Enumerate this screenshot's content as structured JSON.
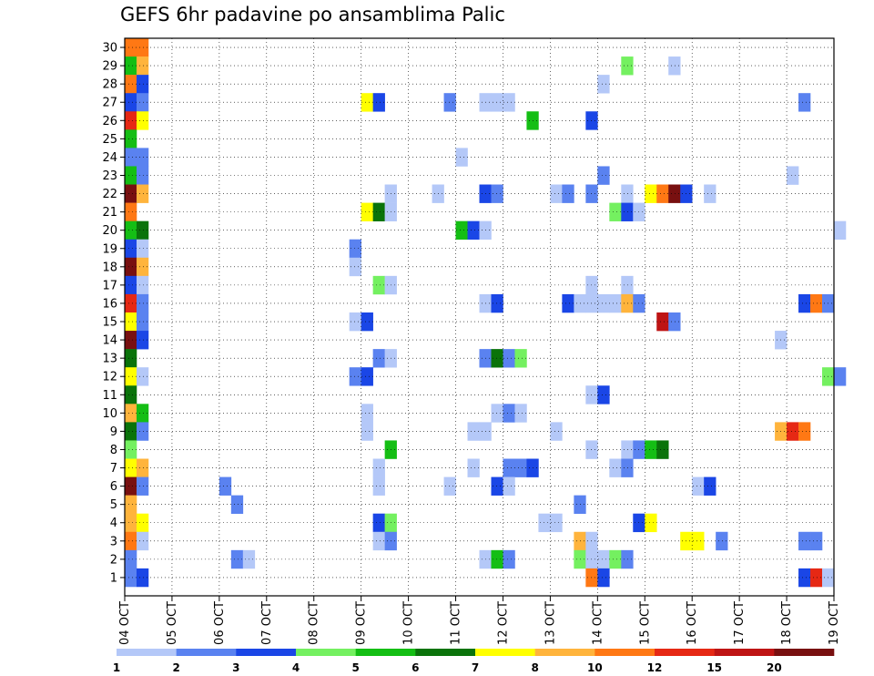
{
  "chart_data": {
    "type": "heatmap",
    "title": "GEFS 6hr padavine po ansamblima Palic",
    "xlabel": "",
    "ylabel": "",
    "x_ticks": [
      "04 OCT",
      "05 OCT",
      "06 OCT",
      "07 OCT",
      "08 OCT",
      "09 OCT",
      "10 OCT",
      "11 OCT",
      "12 OCT",
      "13 OCT",
      "14 OCT",
      "15 OCT",
      "16 OCT",
      "17 OCT",
      "18 OCT",
      "19 OCT"
    ],
    "xlim": [
      "04 OCT 00z",
      "19 OCT 00z"
    ],
    "time_step_hours": 6,
    "y_ticks": [
      "1",
      "2",
      "3",
      "4",
      "5",
      "6",
      "7",
      "8",
      "9",
      "10",
      "11",
      "12",
      "13",
      "14",
      "15",
      "16",
      "17",
      "18",
      "19",
      "20",
      "21",
      "22",
      "23",
      "24",
      "25",
      "26",
      "27",
      "28",
      "29",
      "30"
    ],
    "ylim": [
      0,
      30
    ],
    "grid": true,
    "colorbar": {
      "placement": "bottom",
      "labels": [
        "1",
        "2",
        "3",
        "4",
        "5",
        "6",
        "7",
        "8",
        "10",
        "12",
        "15",
        "20"
      ],
      "colors": [
        "#b4c8f8",
        "#5a82f0",
        "#1a46e6",
        "#74f060",
        "#14be14",
        "#0a730a",
        "#ffff00",
        "#ffb43c",
        "#ff7814",
        "#e62814",
        "#be1414",
        "#781010"
      ]
    },
    "cells": [
      {
        "member": 30,
        "t": 0,
        "v": "10-12"
      },
      {
        "member": 30,
        "t": 1,
        "v": "10-12"
      },
      {
        "member": 29,
        "t": 0,
        "v": "5-6"
      },
      {
        "member": 29,
        "t": 1,
        "v": "8-10"
      },
      {
        "member": 29,
        "t": 42,
        "v": "4-5"
      },
      {
        "member": 29,
        "t": 46,
        "v": "1-2"
      },
      {
        "member": 28,
        "t": 0,
        "v": "10-12"
      },
      {
        "member": 28,
        "t": 1,
        "v": "3-4"
      },
      {
        "member": 28,
        "t": 40,
        "v": "1-2"
      },
      {
        "member": 27,
        "t": 0,
        "v": "3-4"
      },
      {
        "member": 27,
        "t": 1,
        "v": "2-3"
      },
      {
        "member": 27,
        "t": 20,
        "v": "7-8"
      },
      {
        "member": 27,
        "t": 21,
        "v": "3-4"
      },
      {
        "member": 27,
        "t": 27,
        "v": "2-3"
      },
      {
        "member": 27,
        "t": 30,
        "v": "1-2"
      },
      {
        "member": 27,
        "t": 31,
        "v": "1-2"
      },
      {
        "member": 27,
        "t": 32,
        "v": "1-2"
      },
      {
        "member": 27,
        "t": 57,
        "v": "2-3"
      },
      {
        "member": 26,
        "t": 0,
        "v": "12-15"
      },
      {
        "member": 26,
        "t": 1,
        "v": "7-8"
      },
      {
        "member": 26,
        "t": 34,
        "v": "5-6"
      },
      {
        "member": 26,
        "t": 39,
        "v": "3-4"
      },
      {
        "member": 25,
        "t": 0,
        "v": "5-6"
      },
      {
        "member": 24,
        "t": 0,
        "v": "2-3"
      },
      {
        "member": 24,
        "t": 1,
        "v": "2-3"
      },
      {
        "member": 24,
        "t": 28,
        "v": "1-2"
      },
      {
        "member": 23,
        "t": 0,
        "v": "5-6"
      },
      {
        "member": 23,
        "t": 1,
        "v": "2-3"
      },
      {
        "member": 23,
        "t": 40,
        "v": "2-3"
      },
      {
        "member": 23,
        "t": 56,
        "v": "1-2"
      },
      {
        "member": 22,
        "t": 0,
        "v": "20+"
      },
      {
        "member": 22,
        "t": 1,
        "v": "8-10"
      },
      {
        "member": 22,
        "t": 22,
        "v": "1-2"
      },
      {
        "member": 22,
        "t": 26,
        "v": "1-2"
      },
      {
        "member": 22,
        "t": 30,
        "v": "3-4"
      },
      {
        "member": 22,
        "t": 31,
        "v": "2-3"
      },
      {
        "member": 22,
        "t": 36,
        "v": "1-2"
      },
      {
        "member": 22,
        "t": 37,
        "v": "2-3"
      },
      {
        "member": 22,
        "t": 39,
        "v": "2-3"
      },
      {
        "member": 22,
        "t": 42,
        "v": "1-2"
      },
      {
        "member": 22,
        "t": 44,
        "v": "7-8"
      },
      {
        "member": 22,
        "t": 45,
        "v": "10-12"
      },
      {
        "member": 22,
        "t": 46,
        "v": "20+"
      },
      {
        "member": 22,
        "t": 47,
        "v": "3-4"
      },
      {
        "member": 22,
        "t": 49,
        "v": "1-2"
      },
      {
        "member": 21,
        "t": 0,
        "v": "10-12"
      },
      {
        "member": 21,
        "t": 20,
        "v": "7-8"
      },
      {
        "member": 21,
        "t": 21,
        "v": "6-7"
      },
      {
        "member": 21,
        "t": 22,
        "v": "1-2"
      },
      {
        "member": 21,
        "t": 41,
        "v": "4-5"
      },
      {
        "member": 21,
        "t": 42,
        "v": "3-4"
      },
      {
        "member": 21,
        "t": 43,
        "v": "1-2"
      },
      {
        "member": 20,
        "t": 0,
        "v": "5-6"
      },
      {
        "member": 20,
        "t": 1,
        "v": "6-7"
      },
      {
        "member": 20,
        "t": 28,
        "v": "5-6"
      },
      {
        "member": 20,
        "t": 29,
        "v": "3-4"
      },
      {
        "member": 20,
        "t": 30,
        "v": "1-2"
      },
      {
        "member": 20,
        "t": 60,
        "v": "1-2"
      },
      {
        "member": 19,
        "t": 0,
        "v": "3-4"
      },
      {
        "member": 19,
        "t": 1,
        "v": "1-2"
      },
      {
        "member": 19,
        "t": 19,
        "v": "2-3"
      },
      {
        "member": 18,
        "t": 0,
        "v": "20+"
      },
      {
        "member": 18,
        "t": 1,
        "v": "8-10"
      },
      {
        "member": 18,
        "t": 19,
        "v": "1-2"
      },
      {
        "member": 17,
        "t": 0,
        "v": "3-4"
      },
      {
        "member": 17,
        "t": 1,
        "v": "1-2"
      },
      {
        "member": 17,
        "t": 21,
        "v": "4-5"
      },
      {
        "member": 17,
        "t": 22,
        "v": "1-2"
      },
      {
        "member": 17,
        "t": 39,
        "v": "1-2"
      },
      {
        "member": 17,
        "t": 42,
        "v": "1-2"
      },
      {
        "member": 16,
        "t": 0,
        "v": "12-15"
      },
      {
        "member": 16,
        "t": 1,
        "v": "2-3"
      },
      {
        "member": 16,
        "t": 30,
        "v": "1-2"
      },
      {
        "member": 16,
        "t": 31,
        "v": "3-4"
      },
      {
        "member": 16,
        "t": 37,
        "v": "3-4"
      },
      {
        "member": 16,
        "t": 38,
        "v": "1-2"
      },
      {
        "member": 16,
        "t": 39,
        "v": "1-2"
      },
      {
        "member": 16,
        "t": 40,
        "v": "1-2"
      },
      {
        "member": 16,
        "t": 41,
        "v": "1-2"
      },
      {
        "member": 16,
        "t": 42,
        "v": "8-10"
      },
      {
        "member": 16,
        "t": 43,
        "v": "2-3"
      },
      {
        "member": 16,
        "t": 57,
        "v": "3-4"
      },
      {
        "member": 16,
        "t": 58,
        "v": "10-12"
      },
      {
        "member": 16,
        "t": 59,
        "v": "2-3"
      },
      {
        "member": 15,
        "t": 0,
        "v": "7-8"
      },
      {
        "member": 15,
        "t": 1,
        "v": "2-3"
      },
      {
        "member": 15,
        "t": 19,
        "v": "1-2"
      },
      {
        "member": 15,
        "t": 20,
        "v": "3-4"
      },
      {
        "member": 15,
        "t": 45,
        "v": "15-20"
      },
      {
        "member": 15,
        "t": 46,
        "v": "2-3"
      },
      {
        "member": 14,
        "t": 0,
        "v": "20+"
      },
      {
        "member": 14,
        "t": 1,
        "v": "3-4"
      },
      {
        "member": 14,
        "t": 55,
        "v": "1-2"
      },
      {
        "member": 13,
        "t": 0,
        "v": "6-7"
      },
      {
        "member": 13,
        "t": 21,
        "v": "2-3"
      },
      {
        "member": 13,
        "t": 22,
        "v": "1-2"
      },
      {
        "member": 13,
        "t": 30,
        "v": "2-3"
      },
      {
        "member": 13,
        "t": 31,
        "v": "6-7"
      },
      {
        "member": 13,
        "t": 32,
        "v": "2-3"
      },
      {
        "member": 13,
        "t": 33,
        "v": "4-5"
      },
      {
        "member": 12,
        "t": 0,
        "v": "7-8"
      },
      {
        "member": 12,
        "t": 1,
        "v": "1-2"
      },
      {
        "member": 12,
        "t": 19,
        "v": "2-3"
      },
      {
        "member": 12,
        "t": 20,
        "v": "3-4"
      },
      {
        "member": 12,
        "t": 59,
        "v": "4-5"
      },
      {
        "member": 12,
        "t": 60,
        "v": "2-3"
      },
      {
        "member": 11,
        "t": 0,
        "v": "6-7"
      },
      {
        "member": 11,
        "t": 39,
        "v": "1-2"
      },
      {
        "member": 11,
        "t": 40,
        "v": "3-4"
      },
      {
        "member": 10,
        "t": 0,
        "v": "8-10"
      },
      {
        "member": 10,
        "t": 1,
        "v": "5-6"
      },
      {
        "member": 10,
        "t": 20,
        "v": "1-2"
      },
      {
        "member": 10,
        "t": 31,
        "v": "1-2"
      },
      {
        "member": 10,
        "t": 32,
        "v": "2-3"
      },
      {
        "member": 10,
        "t": 33,
        "v": "1-2"
      },
      {
        "member": 9,
        "t": 0,
        "v": "6-7"
      },
      {
        "member": 9,
        "t": 1,
        "v": "2-3"
      },
      {
        "member": 9,
        "t": 20,
        "v": "1-2"
      },
      {
        "member": 9,
        "t": 29,
        "v": "1-2"
      },
      {
        "member": 9,
        "t": 30,
        "v": "1-2"
      },
      {
        "member": 9,
        "t": 36,
        "v": "1-2"
      },
      {
        "member": 9,
        "t": 55,
        "v": "8-10"
      },
      {
        "member": 9,
        "t": 56,
        "v": "12-15"
      },
      {
        "member": 9,
        "t": 57,
        "v": "10-12"
      },
      {
        "member": 8,
        "t": 0,
        "v": "4-5"
      },
      {
        "member": 8,
        "t": 22,
        "v": "5-6"
      },
      {
        "member": 8,
        "t": 39,
        "v": "1-2"
      },
      {
        "member": 8,
        "t": 42,
        "v": "1-2"
      },
      {
        "member": 8,
        "t": 43,
        "v": "2-3"
      },
      {
        "member": 8,
        "t": 44,
        "v": "5-6"
      },
      {
        "member": 8,
        "t": 45,
        "v": "6-7"
      },
      {
        "member": 7,
        "t": 0,
        "v": "7-8"
      },
      {
        "member": 7,
        "t": 1,
        "v": "8-10"
      },
      {
        "member": 7,
        "t": 21,
        "v": "1-2"
      },
      {
        "member": 7,
        "t": 29,
        "v": "1-2"
      },
      {
        "member": 7,
        "t": 32,
        "v": "2-3"
      },
      {
        "member": 7,
        "t": 33,
        "v": "2-3"
      },
      {
        "member": 7,
        "t": 34,
        "v": "3-4"
      },
      {
        "member": 7,
        "t": 41,
        "v": "1-2"
      },
      {
        "member": 7,
        "t": 42,
        "v": "2-3"
      },
      {
        "member": 6,
        "t": 0,
        "v": "20+"
      },
      {
        "member": 6,
        "t": 1,
        "v": "2-3"
      },
      {
        "member": 6,
        "t": 8,
        "v": "2-3"
      },
      {
        "member": 6,
        "t": 21,
        "v": "1-2"
      },
      {
        "member": 6,
        "t": 27,
        "v": "1-2"
      },
      {
        "member": 6,
        "t": 31,
        "v": "3-4"
      },
      {
        "member": 6,
        "t": 32,
        "v": "1-2"
      },
      {
        "member": 6,
        "t": 48,
        "v": "1-2"
      },
      {
        "member": 6,
        "t": 49,
        "v": "3-4"
      },
      {
        "member": 5,
        "t": 0,
        "v": "8-10"
      },
      {
        "member": 5,
        "t": 9,
        "v": "2-3"
      },
      {
        "member": 5,
        "t": 38,
        "v": "2-3"
      },
      {
        "member": 4,
        "t": 0,
        "v": "8-10"
      },
      {
        "member": 4,
        "t": 1,
        "v": "7-8"
      },
      {
        "member": 4,
        "t": 21,
        "v": "3-4"
      },
      {
        "member": 4,
        "t": 22,
        "v": "4-5"
      },
      {
        "member": 4,
        "t": 35,
        "v": "1-2"
      },
      {
        "member": 4,
        "t": 36,
        "v": "1-2"
      },
      {
        "member": 4,
        "t": 43,
        "v": "3-4"
      },
      {
        "member": 4,
        "t": 44,
        "v": "7-8"
      },
      {
        "member": 3,
        "t": 0,
        "v": "10-12"
      },
      {
        "member": 3,
        "t": 1,
        "v": "1-2"
      },
      {
        "member": 3,
        "t": 21,
        "v": "1-2"
      },
      {
        "member": 3,
        "t": 22,
        "v": "2-3"
      },
      {
        "member": 3,
        "t": 38,
        "v": "8-10"
      },
      {
        "member": 3,
        "t": 39,
        "v": "1-2"
      },
      {
        "member": 3,
        "t": 47,
        "v": "7-8"
      },
      {
        "member": 3,
        "t": 48,
        "v": "7-8"
      },
      {
        "member": 3,
        "t": 50,
        "v": "2-3"
      },
      {
        "member": 3,
        "t": 57,
        "v": "2-3"
      },
      {
        "member": 3,
        "t": 58,
        "v": "2-3"
      },
      {
        "member": 2,
        "t": 0,
        "v": "2-3"
      },
      {
        "member": 2,
        "t": 9,
        "v": "2-3"
      },
      {
        "member": 2,
        "t": 10,
        "v": "1-2"
      },
      {
        "member": 2,
        "t": 30,
        "v": "1-2"
      },
      {
        "member": 2,
        "t": 31,
        "v": "5-6"
      },
      {
        "member": 2,
        "t": 32,
        "v": "2-3"
      },
      {
        "member": 2,
        "t": 38,
        "v": "4-5"
      },
      {
        "member": 2,
        "t": 39,
        "v": "1-2"
      },
      {
        "member": 2,
        "t": 40,
        "v": "1-2"
      },
      {
        "member": 2,
        "t": 41,
        "v": "4-5"
      },
      {
        "member": 2,
        "t": 42,
        "v": "2-3"
      },
      {
        "member": 1,
        "t": 0,
        "v": "2-3"
      },
      {
        "member": 1,
        "t": 1,
        "v": "3-4"
      },
      {
        "member": 1,
        "t": 39,
        "v": "10-12"
      },
      {
        "member": 1,
        "t": 40,
        "v": "3-4"
      },
      {
        "member": 1,
        "t": 57,
        "v": "3-4"
      },
      {
        "member": 1,
        "t": 58,
        "v": "12-15"
      },
      {
        "member": 1,
        "t": 59,
        "v": "1-2"
      }
    ]
  }
}
